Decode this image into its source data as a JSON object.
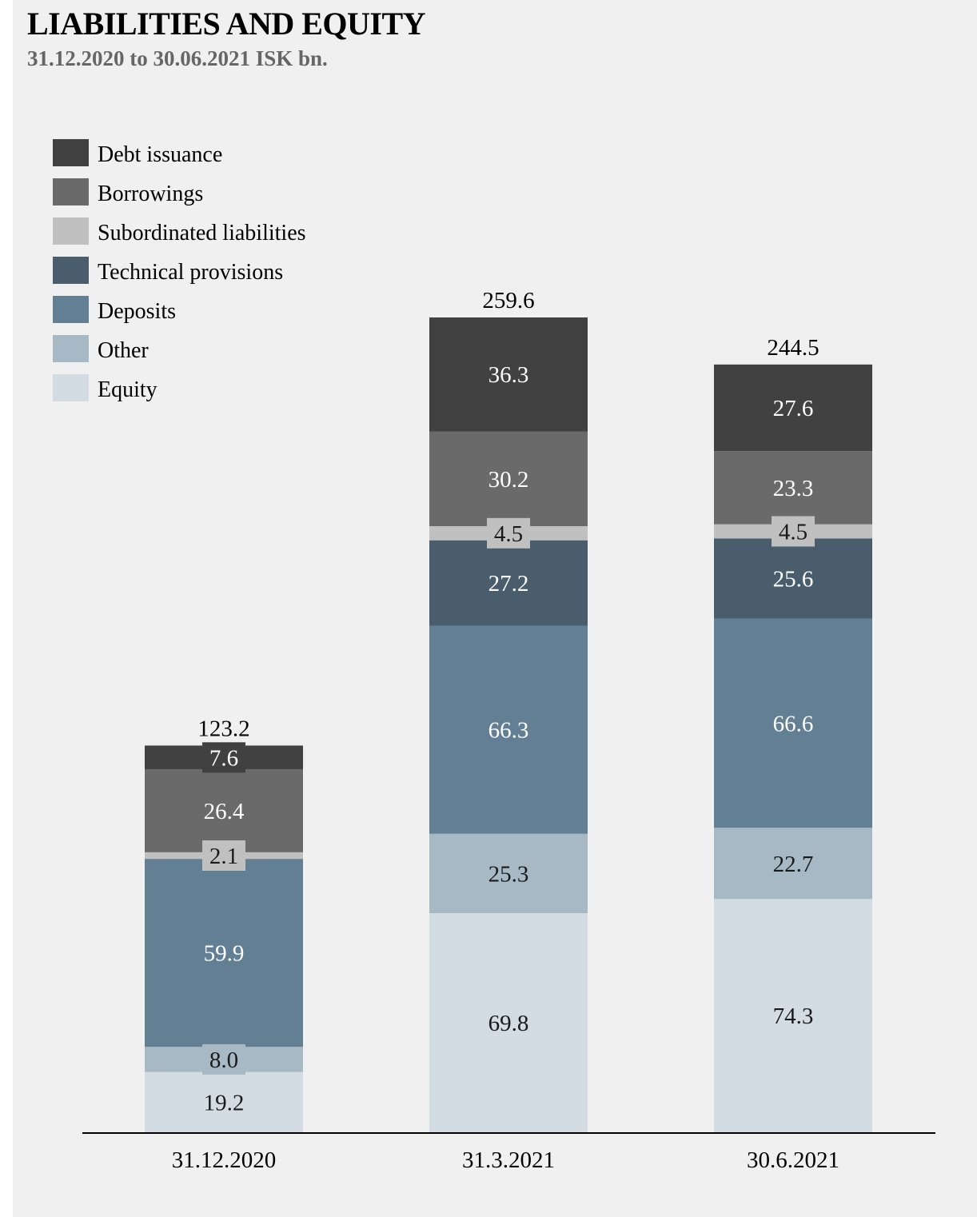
{
  "header": {
    "title": "LIABILITIES AND EQUITY",
    "subtitle": "31.12.2020 to 30.06.2021 ISK bn."
  },
  "colors": {
    "background": "#f0f0f0",
    "Debt issuance": "#414141",
    "Borrowings": "#6a6a6a",
    "Subordinated liabilities": "#c0c0c0",
    "Technical provisions": "#495d6d",
    "Deposits": "#627f94",
    "Other": "#a8b9c6",
    "Equity": "#d4dce3"
  },
  "chart_data": {
    "type": "bar",
    "stacked": true,
    "title": "LIABILITIES AND EQUITY",
    "subtitle": "31.12.2020 to 30.06.2021 ISK bn.",
    "xlabel": "",
    "ylabel": "",
    "ylim": [
      0,
      259.6
    ],
    "grid": false,
    "legend_placement": "top-left",
    "categories": [
      "31.12.2020",
      "31.3.2021",
      "30.6.2021"
    ],
    "totals": [
      "123.2",
      "259.6",
      "244.5"
    ],
    "series": [
      {
        "name": "Equity",
        "values": [
          19.2,
          69.8,
          74.3
        ]
      },
      {
        "name": "Other",
        "values": [
          8.0,
          25.3,
          22.7
        ]
      },
      {
        "name": "Deposits",
        "values": [
          59.9,
          66.3,
          66.6
        ]
      },
      {
        "name": "Technical provisions",
        "values": [
          0,
          27.2,
          25.6
        ]
      },
      {
        "name": "Subordinated liabilities",
        "values": [
          2.1,
          4.5,
          4.5
        ]
      },
      {
        "name": "Borrowings",
        "values": [
          26.4,
          30.2,
          23.3
        ]
      },
      {
        "name": "Debt issuance",
        "values": [
          7.6,
          36.3,
          27.6
        ]
      }
    ],
    "legend": [
      "Debt issuance",
      "Borrowings",
      "Subordinated liabilities",
      "Technical provisions",
      "Deposits",
      "Other",
      "Equity"
    ]
  }
}
